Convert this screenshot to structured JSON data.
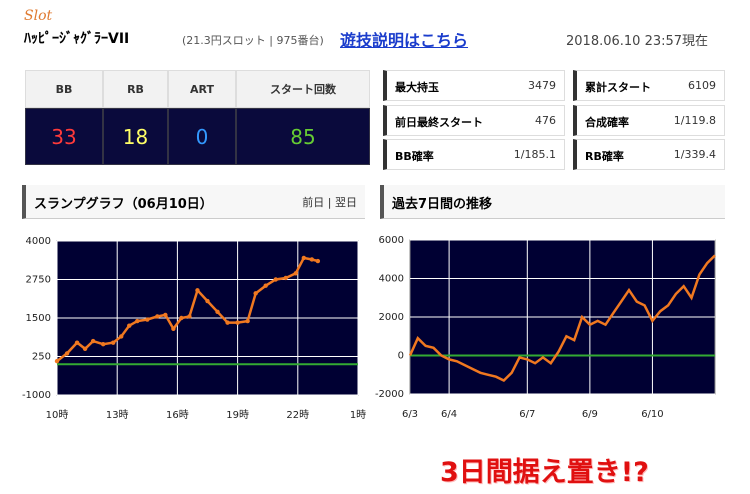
{
  "header": {
    "brand": "Slot",
    "machine": "ﾊｯﾋﾟｰｼﾞｬｸﾞﾗｰVII",
    "info": "(21.3円スロット | 975番台)",
    "link": "遊技説明はこちら",
    "datetime": "2018.06.10 23:57現在"
  },
  "counters": {
    "headers": [
      "BB",
      "RB",
      "ART",
      "スタート回数"
    ],
    "values": [
      33,
      18,
      0,
      85
    ],
    "colors": [
      "#ff3a3a",
      "#ffff66",
      "#3399ff",
      "#66cc33"
    ]
  },
  "stats": [
    {
      "label": "最大持玉",
      "value": 3479
    },
    {
      "label": "累計スタート",
      "value": 6109
    },
    {
      "label": "前日最終スタート",
      "value": 476
    },
    {
      "label": "合成確率",
      "value": "1/119.8"
    },
    {
      "label": "BB確率",
      "value": "1/185.1"
    },
    {
      "label": "RB確率",
      "value": "1/339.4"
    }
  ],
  "panels": [
    {
      "title": "スランプグラフ（06月10日）",
      "nav": "前日 | 翌日"
    },
    {
      "title": "過去7日間の推移"
    }
  ],
  "chart_data": [
    {
      "type": "line",
      "plot_background": "#000033",
      "grid": true,
      "zero_line": {
        "value": 0,
        "color": "#33aa33"
      },
      "x": [
        10,
        10.5,
        11,
        11.4,
        11.8,
        12.3,
        12.8,
        13.2,
        13.6,
        14.0,
        14.5,
        15.0,
        15.4,
        15.8,
        16.2,
        16.6,
        17.0,
        17.5,
        18.0,
        18.5,
        19.0,
        19.5,
        19.9,
        20.4,
        20.9,
        21.4,
        21.9,
        22.3,
        22.7,
        23.0
      ],
      "series": [
        {
          "color": "#f07820",
          "values": [
            100,
            350,
            700,
            500,
            750,
            650,
            700,
            900,
            1250,
            1400,
            1450,
            1550,
            1600,
            1150,
            1500,
            1550,
            2400,
            2050,
            1700,
            1350,
            1350,
            1400,
            2300,
            2550,
            2750,
            2800,
            2950,
            3450,
            3400,
            3350
          ]
        }
      ],
      "xlim": [
        10,
        25
      ],
      "xticks": [
        {
          "value": 10,
          "label": "10時"
        },
        {
          "value": 13,
          "label": "13時"
        },
        {
          "value": 16,
          "label": "16時"
        },
        {
          "value": 19,
          "label": "19時"
        },
        {
          "value": 22,
          "label": "22時"
        },
        {
          "value": 25,
          "label": "1時"
        }
      ],
      "ylim": [
        -1000,
        4000
      ],
      "yticks": [
        -1000,
        250,
        1500,
        2750,
        4000
      ]
    },
    {
      "type": "line",
      "plot_background": "#000033",
      "grid": true,
      "zero_line": {
        "value": 0,
        "color": "#33aa33"
      },
      "categories": [
        "6/3",
        null,
        null,
        null,
        null,
        "6/4",
        null,
        null,
        null,
        null,
        null,
        null,
        null,
        null,
        null,
        "6/7",
        null,
        null,
        null,
        null,
        null,
        null,
        null,
        "6/9",
        null,
        null,
        null,
        null,
        null,
        null,
        null,
        "6/10",
        null,
        null,
        null,
        null,
        null,
        null,
        null,
        null
      ],
      "series": [
        {
          "color": "#f07820",
          "values": [
            0,
            900,
            500,
            400,
            0,
            -200,
            -300,
            -500,
            -700,
            -900,
            -1000,
            -1100,
            -1300,
            -900,
            -100,
            -200,
            -400,
            -100,
            -400,
            200,
            1000,
            800,
            2000,
            1600,
            1800,
            1600,
            2200,
            2800,
            3400,
            2800,
            2600,
            1800,
            2300,
            2600,
            3200,
            3600,
            3000,
            4200,
            4800,
            5200
          ]
        }
      ],
      "ylim": [
        -2000,
        6000
      ],
      "yticks": [
        -2000,
        0,
        2000,
        4000,
        6000
      ]
    }
  ],
  "caption": "3日間据え置き!?"
}
